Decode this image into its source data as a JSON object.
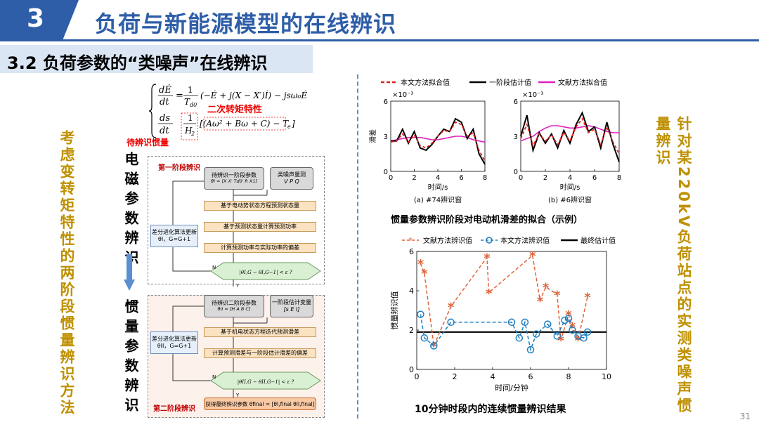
{
  "header": {
    "section_number": "3",
    "title": "负荷与新能源模型的在线辨识",
    "subtitle": "3.2 负荷参数的“类噪声”在线辨识"
  },
  "left_vertical_text": "考虑变转矩特性的两阶段惯量辨识方法",
  "right_vertical_text": "针对某220kV负荷站点的实测类噪声惯量辨识",
  "equations": {
    "eq1_lhs_num": "dÉ",
    "eq1_lhs_den": "dt",
    "eq1_eq": "=",
    "eq1_frac_num": "1",
    "eq1_frac_den": "T",
    "eq1_frac_den_sub": "d0",
    "eq1_rhs": "(−É + j(X − X′)İ) − jsω₀É",
    "eq2_lhs_num": "ds",
    "eq2_lhs_den": "dt",
    "eq2_frac_num": "1",
    "eq2_frac_den": "H",
    "eq2_frac_den_sub": "2",
    "eq2_rhs": "[(Aω² + Bω + C) − T",
    "eq2_rhs_sub": "e",
    "eq2_rhs_end": "]",
    "note_torque": "二次转矩特性",
    "note_inertia": "待辨识惯量"
  },
  "em_label": "电磁参数辨识",
  "inertia_label": "惯量参数辨识",
  "flowchart": {
    "stage1_label": "第一阶段辨识",
    "stage2_label": "第二阶段辨识",
    "s1_params": "待辨识一阶段参数",
    "s1_params_f": "θI = [X X′ Td0′ R X1]",
    "s1_noise": "类噪声量测",
    "s1_noise_f": "V P Q",
    "s1_step1": "基于电动势状态方程预测状态量",
    "s1_step2": "基于预测状态量计算预测功率",
    "s1_step3": "计算预测功率与实际功率的偏差",
    "s1_side": "差分进化算法更新θI，G=G+1",
    "s1_cond": "|θI,G − θI,G−1| < ε ?",
    "s2_params": "待辨识二阶段参数",
    "s2_params_f": "θII = [H A B C]",
    "s2_est": "一阶段估计变量",
    "s2_est_f": "[s E I]",
    "s2_step1": "基于机电状态方程迭代预测滑差",
    "s2_step2": "计算预测滑差与一阶段估计滑差的偏差",
    "s2_side": "差分进化算法更新θII，G=G+1",
    "s2_cond": "|θII,G − θII,G−1| < ε ?",
    "s2_final": "获得最终辨识参数 θfinal = [θI,final θII,final]",
    "yes": "Y",
    "no": "N"
  },
  "slip_chart": {
    "legend": [
      "本文方法拟合值",
      "一阶段估计值",
      "文献方法拟合值"
    ],
    "ylabel": "滑差",
    "xlabel": "时间/s",
    "sci": "×10⁻³",
    "yticks": [
      "6",
      "3",
      "0"
    ],
    "xticks": [
      "0",
      "2",
      "4",
      "6",
      "8"
    ],
    "sub_a": "(a) #74辨识窗",
    "sub_b": "(b) #6辨识窗",
    "caption": "惯量参数辨识阶段对电动机滑差的拟合（示例）"
  },
  "inertia_chart": {
    "legend": [
      "文献方法辨识值",
      "本文方法辨识值",
      "最终估计值"
    ],
    "ylabel": "惯量辨识值",
    "xlabel": "时间/分钟",
    "yticks": [
      "6",
      "4",
      "2",
      "0"
    ],
    "xticks": [
      "0",
      "2",
      "4",
      "6",
      "8",
      "10"
    ],
    "caption": "10分钟时段内的连续惯量辨识结果"
  },
  "chart_data": [
    {
      "type": "line",
      "title": "(a) #74辨识窗",
      "xlabel": "时间/s",
      "ylabel": "滑差",
      "xlim": [
        0,
        8
      ],
      "ylim": [
        0,
        6
      ],
      "y_scale_note": "×10⁻³",
      "x": [
        0,
        0.5,
        1,
        1.5,
        2,
        2.5,
        3,
        3.5,
        4,
        4.5,
        5,
        5.5,
        6,
        6.5,
        7,
        7.5,
        8
      ],
      "series": [
        {
          "name": "一阶段估计值",
          "values": [
            2.6,
            2.6,
            3.6,
            2.4,
            3.4,
            2.0,
            1.8,
            2.3,
            3.0,
            3.6,
            3.4,
            4.5,
            4.2,
            2.8,
            3.6,
            1.5,
            0.6
          ]
        },
        {
          "name": "本文方法拟合值",
          "values": [
            2.5,
            2.6,
            3.2,
            2.5,
            3.1,
            2.2,
            2.0,
            2.4,
            3.0,
            3.5,
            3.4,
            4.2,
            4.0,
            3.0,
            3.3,
            1.8,
            0.9
          ]
        },
        {
          "name": "文献方法拟合值",
          "values": [
            2.6,
            2.7,
            2.8,
            2.9,
            2.9,
            2.9,
            2.8,
            2.7,
            2.7,
            2.8,
            2.9,
            3.0,
            3.0,
            2.9,
            2.7,
            2.6,
            2.5
          ]
        }
      ]
    },
    {
      "type": "line",
      "title": "(b) #6辨识窗",
      "xlabel": "时间/s",
      "ylabel": "",
      "xlim": [
        0,
        8
      ],
      "ylim": [
        0,
        6
      ],
      "y_scale_note": "×10⁻³",
      "x": [
        0,
        0.5,
        1,
        1.5,
        2,
        2.5,
        3,
        3.5,
        4,
        4.5,
        5,
        5.5,
        6,
        6.5,
        7,
        7.5,
        8
      ],
      "series": [
        {
          "name": "一阶段估计值",
          "values": [
            3.0,
            4.8,
            1.8,
            3.3,
            2.4,
            3.2,
            2.0,
            3.5,
            2.4,
            4.0,
            5.0,
            3.4,
            3.8,
            2.0,
            4.2,
            2.3,
            0.8
          ]
        },
        {
          "name": "本文方法拟合值",
          "values": [
            2.8,
            4.0,
            2.2,
            3.2,
            2.6,
            3.1,
            2.3,
            3.3,
            2.6,
            3.8,
            4.5,
            3.3,
            3.6,
            2.3,
            3.8,
            2.5,
            1.5
          ]
        },
        {
          "name": "文献方法拟合值",
          "values": [
            2.6,
            2.8,
            3.0,
            3.4,
            3.7,
            3.9,
            3.9,
            3.8,
            3.7,
            3.7,
            3.8,
            3.9,
            3.8,
            3.6,
            3.4,
            3.3,
            3.3
          ]
        }
      ]
    },
    {
      "type": "line",
      "title": "",
      "xlabel": "时间/分钟",
      "ylabel": "惯量辨识值",
      "xlim": [
        0,
        10
      ],
      "ylim": [
        0,
        6
      ],
      "series": [
        {
          "name": "文献方法辨识值",
          "x": [
            0.2,
            0.4,
            0.9,
            1.8,
            3.7,
            3.8,
            6.1,
            6.5,
            6.8,
            7.4,
            7.6,
            8.0,
            8.2,
            8.5,
            9.0
          ],
          "values": [
            5.4,
            4.9,
            1.2,
            3.2,
            5.7,
            3.9,
            5.8,
            3.5,
            4.2,
            3.8,
            1.5,
            2.8,
            2.2,
            1.5,
            3.7
          ]
        },
        {
          "name": "本文方法辨识值",
          "x": [
            0.2,
            0.4,
            0.9,
            1.8,
            5.0,
            5.4,
            5.7,
            6.0,
            6.3,
            6.9,
            7.4,
            7.8,
            8.0,
            8.2,
            8.5,
            8.8,
            9.0
          ],
          "values": [
            2.8,
            1.6,
            1.2,
            2.4,
            2.4,
            1.6,
            2.4,
            1.0,
            1.8,
            2.3,
            1.7,
            2.5,
            2.6,
            2.0,
            1.7,
            1.6,
            1.9
          ]
        },
        {
          "name": "最终估计值",
          "x": [
            0,
            10
          ],
          "values": [
            1.9,
            1.9
          ]
        }
      ]
    }
  ],
  "colors": {
    "brand_blue": "#2e5ea8",
    "accent_gold": "#bf9000",
    "red_dashed": "#e02020",
    "black_line": "#000000",
    "magenta_line": "#e020c0",
    "orange_star": "#e0643a",
    "blue_circle": "#1f7fbf"
  },
  "page_number": "31"
}
